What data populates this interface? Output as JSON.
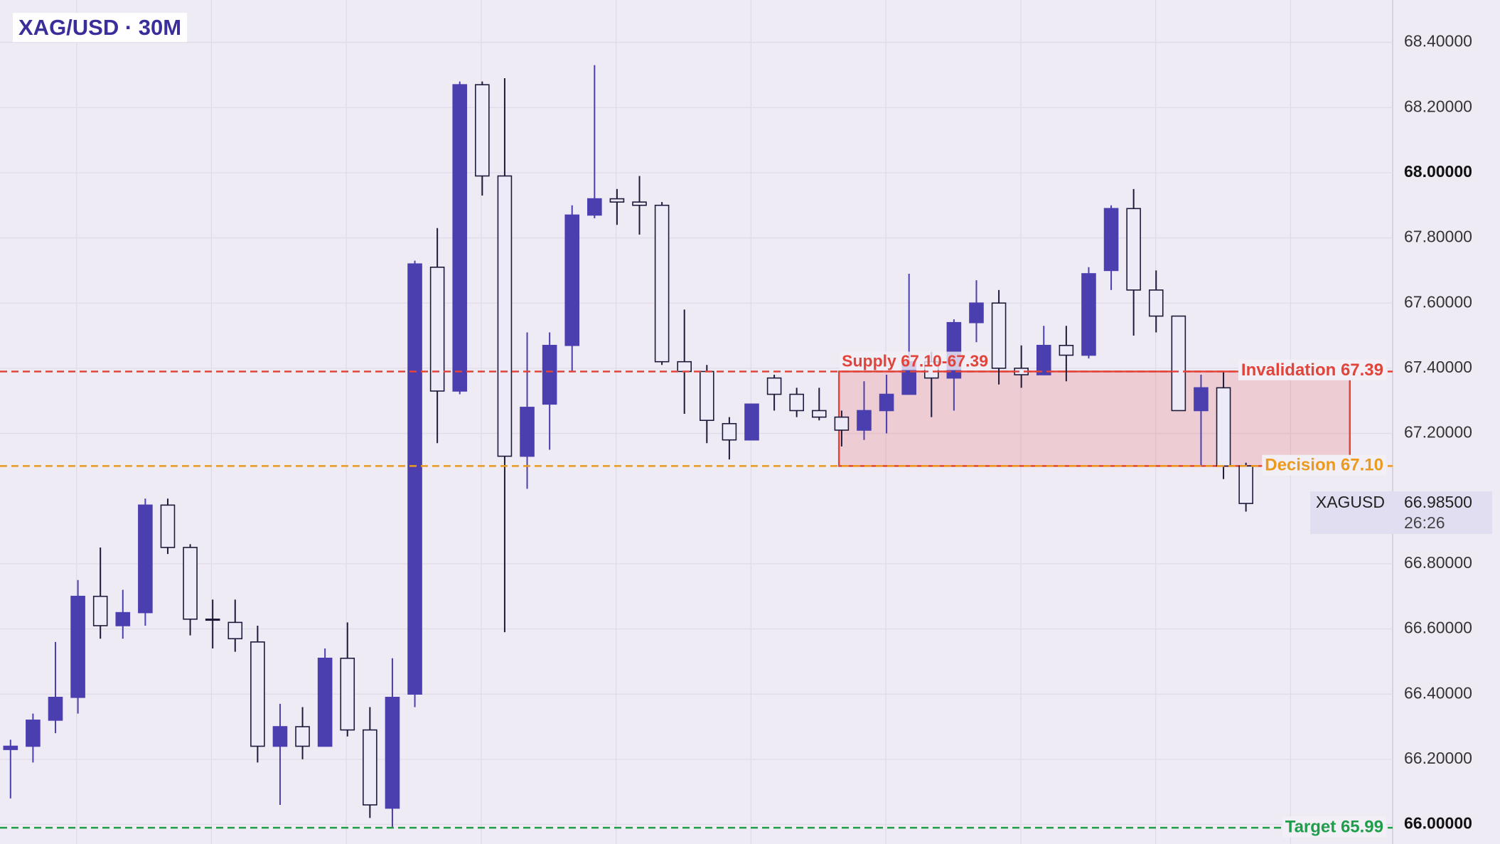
{
  "chart_data": {
    "type": "candlestick",
    "title": "XAG/USD · 30M",
    "up_color": "#4b3fb0",
    "down_color": "#ecebf7",
    "open": [
      66.23,
      66.24,
      66.32,
      66.39,
      66.7,
      66.61,
      66.65,
      66.98,
      66.85,
      66.63,
      66.62,
      66.56,
      66.24,
      66.3,
      66.24,
      66.51,
      66.29,
      66.05,
      66.4,
      67.71,
      67.33,
      68.27,
      67.99,
      67.13,
      67.29,
      67.47,
      67.87,
      67.92,
      67.91,
      67.9,
      67.42,
      67.39,
      67.23,
      67.18,
      67.37,
      67.32,
      67.27,
      67.25,
      67.21,
      67.27,
      67.32,
      67.42,
      67.37,
      67.54,
      67.6,
      67.4,
      67.38,
      67.47,
      67.44,
      67.7,
      67.89,
      67.64,
      67.56,
      67.27,
      67.34,
      67.1
    ],
    "high": [
      66.26,
      66.34,
      66.56,
      66.75,
      66.85,
      66.72,
      67.0,
      67.0,
      66.86,
      66.69,
      66.69,
      66.61,
      66.37,
      66.36,
      66.54,
      66.62,
      66.36,
      66.51,
      67.73,
      67.83,
      68.28,
      68.28,
      68.29,
      67.51,
      67.51,
      67.9,
      68.33,
      67.95,
      67.99,
      67.91,
      67.58,
      67.41,
      67.25,
      67.29,
      67.38,
      67.34,
      67.34,
      67.27,
      67.36,
      67.38,
      67.69,
      67.45,
      67.55,
      67.67,
      67.64,
      67.47,
      67.53,
      67.53,
      67.71,
      67.9,
      67.95,
      67.7,
      67.56,
      67.38,
      67.39,
      67.11
    ],
    "low": [
      66.08,
      66.19,
      66.28,
      66.34,
      66.57,
      66.57,
      66.61,
      66.83,
      66.58,
      66.54,
      66.53,
      66.19,
      66.06,
      66.2,
      66.24,
      66.27,
      66.02,
      65.99,
      66.36,
      67.17,
      67.32,
      67.93,
      66.59,
      67.03,
      67.15,
      67.39,
      67.86,
      67.84,
      67.81,
      67.41,
      67.26,
      67.17,
      67.12,
      67.18,
      67.27,
      67.25,
      67.24,
      67.16,
      67.18,
      67.2,
      67.32,
      67.25,
      67.27,
      67.48,
      67.35,
      67.34,
      67.38,
      67.36,
      67.43,
      67.64,
      67.5,
      67.51,
      67.27,
      67.1,
      67.06,
      66.96
    ],
    "close": [
      66.24,
      66.32,
      66.39,
      66.7,
      66.61,
      66.65,
      66.98,
      66.85,
      66.63,
      66.63,
      66.57,
      66.24,
      66.3,
      66.24,
      66.51,
      66.29,
      66.06,
      66.39,
      67.72,
      67.33,
      68.27,
      67.99,
      67.13,
      67.28,
      67.47,
      67.87,
      67.92,
      67.91,
      67.9,
      67.42,
      67.39,
      67.24,
      67.18,
      67.29,
      67.32,
      67.27,
      67.25,
      67.21,
      67.27,
      67.32,
      67.42,
      67.37,
      67.54,
      67.6,
      67.4,
      67.38,
      67.47,
      67.44,
      67.69,
      67.89,
      67.64,
      67.56,
      67.27,
      67.34,
      67.1,
      66.985
    ],
    "ylim": [
      65.94,
      68.53
    ],
    "yticks": [
      {
        "value": 66.0,
        "label": "66.00000"
      },
      {
        "value": 66.2,
        "label": "66.20000"
      },
      {
        "value": 66.4,
        "label": "66.40000"
      },
      {
        "value": 66.6,
        "label": "66.60000"
      },
      {
        "value": 66.8,
        "label": "66.80000"
      },
      {
        "value": 67.2,
        "label": "67.20000"
      },
      {
        "value": 67.4,
        "label": "67.40000"
      },
      {
        "value": 67.6,
        "label": "67.60000"
      },
      {
        "value": 67.8,
        "label": "67.80000"
      },
      {
        "value": 68.0,
        "label": "68.00000"
      },
      {
        "value": 68.2,
        "label": "68.20000"
      },
      {
        "value": 68.4,
        "label": "68.40000"
      }
    ],
    "grid": true,
    "levels": [
      {
        "value": 67.39,
        "label": "Invalidation  67.39",
        "color": "#e0443a"
      },
      {
        "value": 67.1,
        "label": "Decision  67.10",
        "color": "#ec9a1e"
      },
      {
        "value": 65.99,
        "label": "Target  65.99",
        "color": "#1e9e4a"
      }
    ],
    "zone": {
      "label": "Supply 67.10-67.39",
      "low": 67.1,
      "high": 67.39,
      "color": "#e0443a"
    },
    "last_price": {
      "symbol": "XAGUSD",
      "value": 66.985,
      "label": "66.98500",
      "countdown": "26:26"
    }
  }
}
